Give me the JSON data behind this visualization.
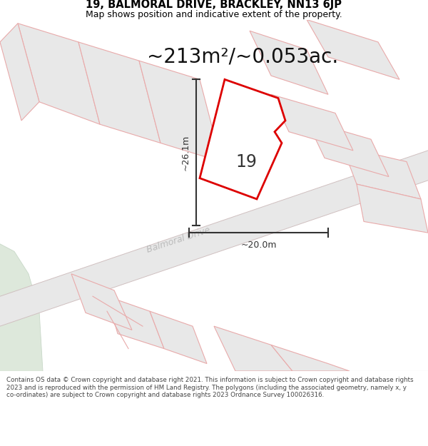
{
  "title_line1": "19, BALMORAL DRIVE, BRACKLEY, NN13 6JP",
  "title_line2": "Map shows position and indicative extent of the property.",
  "area_text": "~213m²/~0.053ac.",
  "number_label": "19",
  "dim_vertical": "~26.1m",
  "dim_horizontal": "~20.0m",
  "road_label": "Balmoral Drive",
  "footer_text": "Contains OS data © Crown copyright and database right 2021. This information is subject to Crown copyright and database rights 2023 and is reproduced with the permission of HM Land Registry. The polygons (including the associated geometry, namely x, y co-ordinates) are subject to Crown copyright and database rights 2023 Ordnance Survey 100026316.",
  "bg_color": "#ffffff",
  "pink": "#e8aaaa",
  "gray_fill": "#e8e8e8",
  "road_fill": "#e0e0e0",
  "green_fill": "#dde8db",
  "prop_edge": "#dd0000",
  "dim_color": "#333333",
  "road_text_color": "#bbbbbb",
  "text_color": "#111111"
}
